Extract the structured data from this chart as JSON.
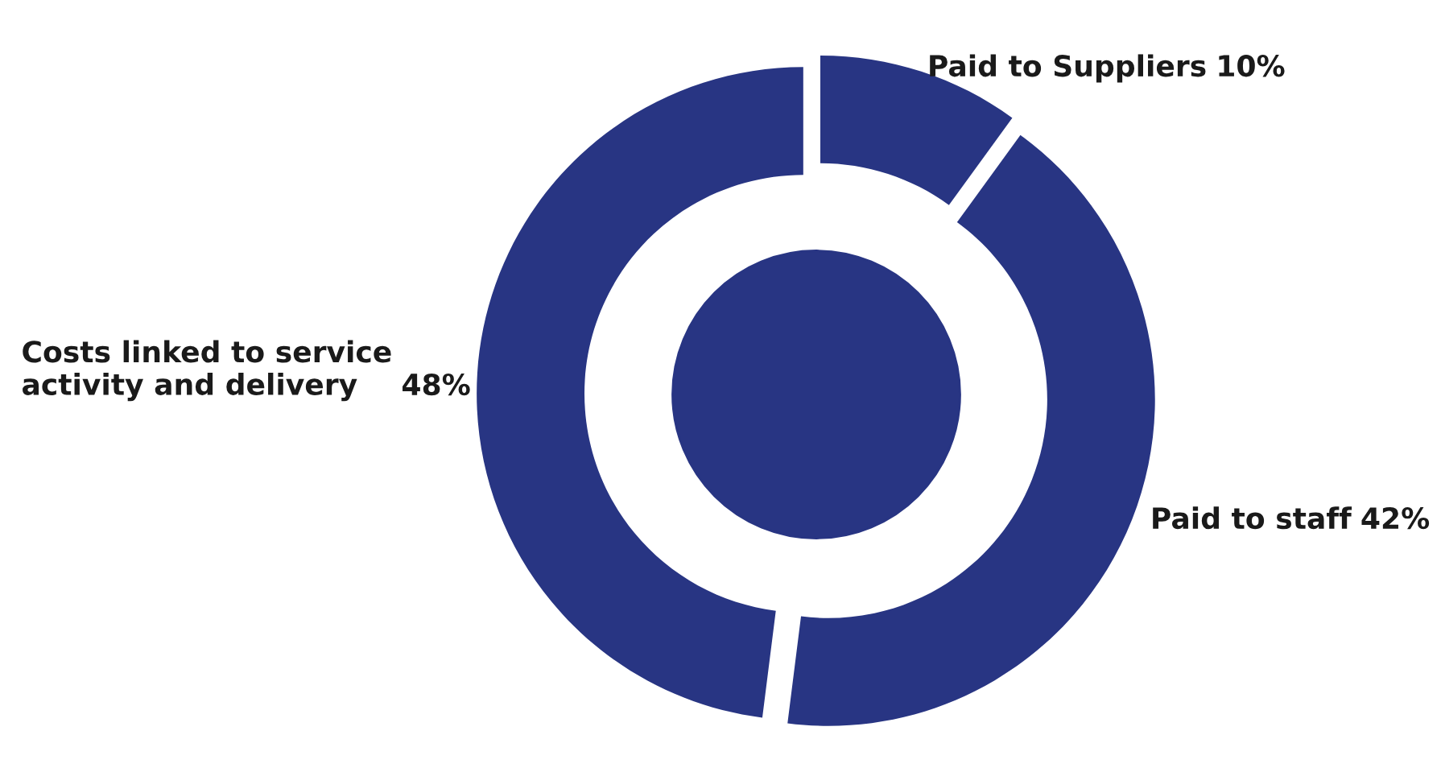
{
  "chart_data": {
    "type": "donut",
    "categories": [
      "Paid to Suppliers",
      "Paid to staff",
      "Costs linked to service\nactivity and delivery"
    ],
    "values": [
      10,
      42,
      48
    ],
    "colors": [
      "#283583",
      "#283583",
      "#283583"
    ],
    "value_labels": [
      "10%",
      "42%",
      "48%"
    ],
    "legend": false
  }
}
